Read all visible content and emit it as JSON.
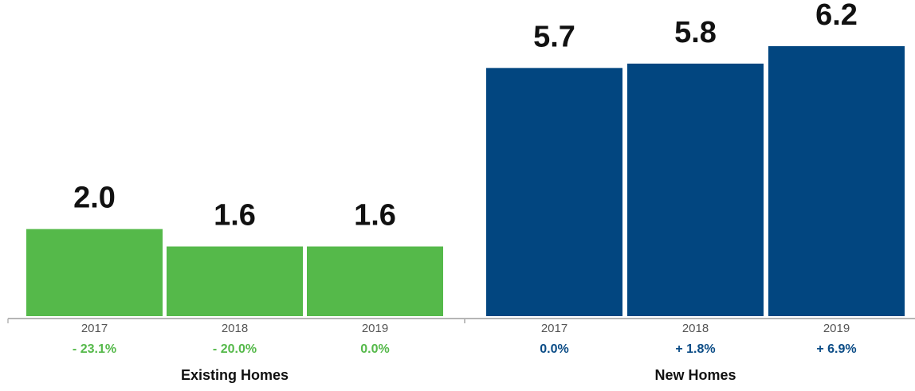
{
  "chart_data": {
    "type": "bar",
    "title": "",
    "xlabel": "",
    "ylabel": "",
    "ylim": [
      0,
      6.2
    ],
    "grid": false,
    "legend": "none",
    "groups": [
      {
        "name": "Existing Homes",
        "color": "#55b94a",
        "change_color": "#55b94a",
        "categories": [
          "2017",
          "2018",
          "2019"
        ],
        "values": [
          2.0,
          1.6,
          1.6
        ],
        "value_labels": [
          "2.0",
          "1.6",
          "1.6"
        ],
        "changes": [
          "- 23.1%",
          "- 20.0%",
          "0.0%"
        ]
      },
      {
        "name": "New Homes",
        "color": "#024680",
        "change_color": "#0b4c86",
        "categories": [
          "2017",
          "2018",
          "2019"
        ],
        "values": [
          5.7,
          5.8,
          6.2
        ],
        "value_labels": [
          "5.7",
          "5.8",
          "6.2"
        ],
        "changes": [
          "0.0%",
          "+ 1.8%",
          "+ 6.9%"
        ]
      }
    ]
  }
}
